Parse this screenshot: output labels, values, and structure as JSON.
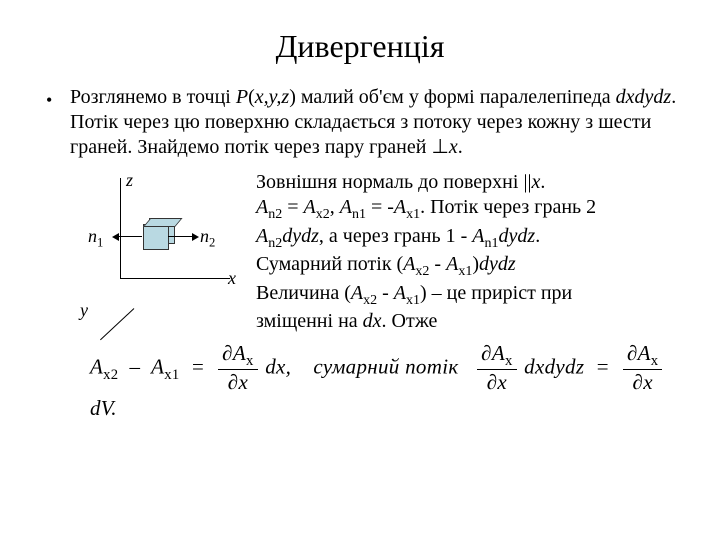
{
  "title": "Дивергенція",
  "intro_html": "Розглянемо в точці <span class='it'>P</span>(<span class='it'>x,y,z</span>) малий об'єм у формі паралелепіпеда <span class='it'>dxdydz</span>. Потік через цю поверхню складається з потоку через кожну з шести граней. Знайдемо потік через пару граней ⊥<span class='it'>x</span>.",
  "side_lines": [
    "Зовнішня нормаль до поверхні ||<span class='it'>x</span>.",
    "<span class='it'>A<sub>n2</sub></span> = <span class='it'>A<sub>x2</sub></span>, <span class='it'>A<sub>n1</sub></span> = -<span class='it'>A<sub>x1</sub></span>. Потік через грань 2",
    "<span class='it'>A<sub>n2</sub>dydz</span>, а через грань 1 -  <span class='it'>A<sub>n1</sub>dydz</span>.",
    "Сумарний потік (<span class='it'>A<sub>x2</sub></span> - <span class='it'>A<sub>x1</sub></span>)<span class='it'>dydz</span>",
    "Величина (<span class='it'>A<sub>x2</sub></span> - <span class='it'>A<sub>x1</sub></span>) – це приріст при",
    "зміщенні на <span class='it'>dx</span>. Отже"
  ],
  "equation": {
    "lhs_a": "A",
    "sub_x2": "x2",
    "sub_x1": "x1",
    "partial": "∂",
    "Ax": "A<sub>x</sub>",
    "dx": "dx",
    "text_mid": "сумарний потік",
    "dxdydz": "dxdydz",
    "dV": "dV"
  },
  "diagram": {
    "axis_labels": {
      "x": "x",
      "y": "y",
      "z": "z"
    },
    "n1": "n",
    "n1_sub": "1",
    "n2": "n",
    "n2_sub": "2",
    "colors": {
      "cube_fill": "#b9d9e2",
      "cube_border": "#333333",
      "axis": "#000000",
      "bg": "#ffffff"
    }
  },
  "style": {
    "title_fontsize": 32,
    "body_fontsize": 20,
    "eq_fontsize": 21,
    "text_color": "#000000",
    "background": "#ffffff"
  }
}
